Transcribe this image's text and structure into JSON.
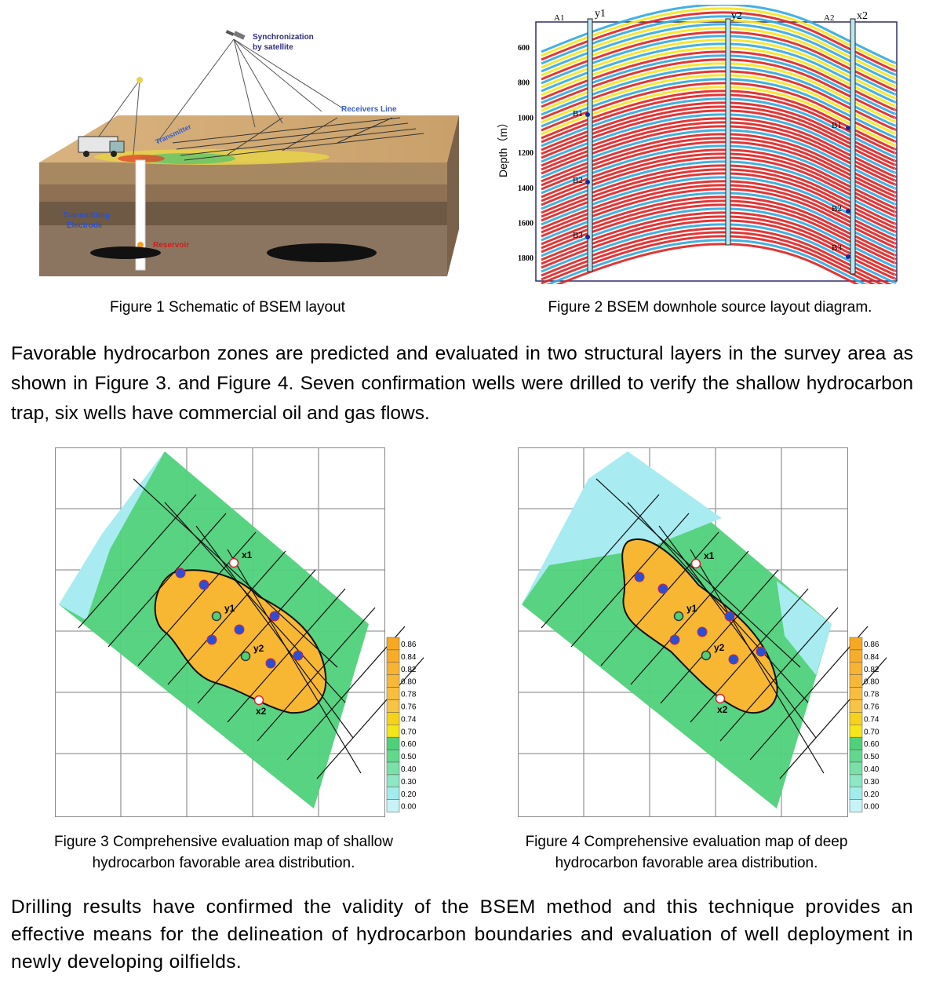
{
  "figure1": {
    "caption": "Figure 1 Schematic of BSEM layout",
    "labels": {
      "sync": "Synchronization\nby satellite",
      "receivers": "Receivers Line",
      "transmitter": "Transmitter",
      "electrode": "Transmitting\nElectrode",
      "reservoir": "Reservoir"
    }
  },
  "figure2": {
    "caption": "Figure 2 BSEM downhole source layout diagram.",
    "axis_label": "Depth（m）",
    "depth_ticks": [
      "600",
      "800",
      "1000",
      "1200",
      "1400",
      "1600",
      "1800"
    ],
    "wells": [
      "y1",
      "y2",
      "x2"
    ],
    "surface_points": [
      "A1",
      "A2"
    ],
    "source_points": [
      "B1",
      "B2",
      "B3",
      "B1",
      "B2",
      "B3"
    ]
  },
  "paragraph1": "Favorable hydrocarbon zones are predicted and evaluated in two structural layers in the survey area as shown in Figure 3. and Figure 4. Seven confirmation wells were drilled to verify the shallow hydrocarbon trap, six wells have commercial oil and gas flows.",
  "figure3": {
    "caption": "Figure 3 Comprehensive evaluation map of shallow hydrocarbon favorable area distribution.",
    "wells": [
      "x1",
      "y1",
      "y2",
      "x2"
    ],
    "scale": [
      "0.86",
      "0.84",
      "0.82",
      "0.80",
      "0.78",
      "0.76",
      "0.74",
      "0.70",
      "0.60",
      "0.50",
      "0.40",
      "0.30",
      "0.20",
      "0.00"
    ]
  },
  "figure4": {
    "caption": "Figure 4 Comprehensive evaluation map of deep hydrocarbon favorable area distribution.",
    "wells": [
      "x1",
      "y1",
      "y2",
      "x2"
    ],
    "scale": [
      "0.86",
      "0.84",
      "0.82",
      "0.80",
      "0.78",
      "0.76",
      "0.74",
      "0.70",
      "0.60",
      "0.50",
      "0.40",
      "0.30",
      "0.20",
      "0.00"
    ]
  },
  "paragraph2": "Drilling results have confirmed the validity of the BSEM method and this technique provides an effective means for the delineation of hydrocarbon boundaries and evaluation of well deployment in newly developing oilfields.",
  "colors": {
    "oil_red": "#e02020",
    "yellow": "#f5e61a",
    "blue": "#2fa8e0",
    "favorable": "#f7b733",
    "green": "#4fd17a",
    "cyan": "#a8ecf2"
  }
}
